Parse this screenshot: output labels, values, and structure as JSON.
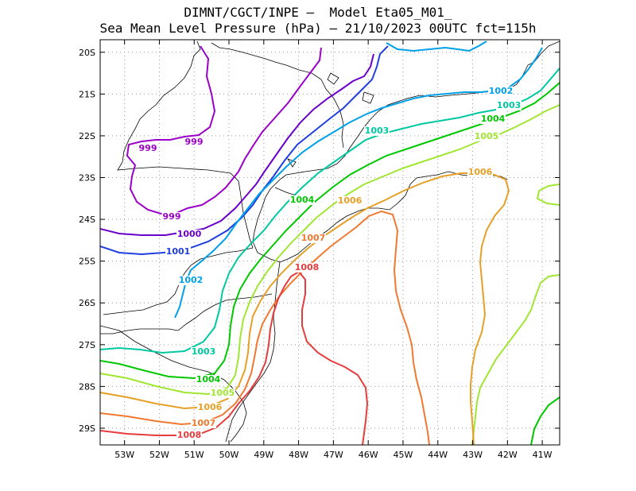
{
  "title": {
    "line1": "DIMNT/CGCT/INPE –  Model Eta05_M01_",
    "line2": "Sea Mean Level Pressure (hPa) – 21/10/2023 00UTC fct=115h"
  },
  "map": {
    "lat_ticks": [
      "20S",
      "21S",
      "22S",
      "23S",
      "24S",
      "25S",
      "26S",
      "27S",
      "28S",
      "29S"
    ],
    "lon_ticks": [
      "53W",
      "52W",
      "51W",
      "50W",
      "49W",
      "48W",
      "47W",
      "46W",
      "45W",
      "44W",
      "43W",
      "42W",
      "41W"
    ],
    "lon_range": [
      -53.7,
      -40.5
    ],
    "lat_range": [
      -19.7,
      -29.4
    ]
  },
  "contour_colors": {
    "999": "#9a00c8",
    "1000": "#6a00cc",
    "1001": "#1f3fe0",
    "1002": "#00a0e8",
    "1003": "#00c8a0",
    "1004": "#00c800",
    "1005": "#a0e632",
    "1006": "#e6a028",
    "1007": "#f07830",
    "1008": "#e63c3c"
  },
  "contour_labels": [
    {
      "text": "999",
      "key": "999"
    },
    {
      "text": "999",
      "key": "999"
    },
    {
      "text": "999",
      "key": "999"
    },
    {
      "text": "1000",
      "key": "1000"
    },
    {
      "text": "1001",
      "key": "1001"
    },
    {
      "text": "1002",
      "key": "1002"
    },
    {
      "text": "1002",
      "key": "1002"
    },
    {
      "text": "1003",
      "key": "1003"
    },
    {
      "text": "1003",
      "key": "1003"
    },
    {
      "text": "1003",
      "key": "1003"
    },
    {
      "text": "1004",
      "key": "1004"
    },
    {
      "text": "1004",
      "key": "1004"
    },
    {
      "text": "1004",
      "key": "1004"
    },
    {
      "text": "1005",
      "key": "1005"
    },
    {
      "text": "1005",
      "key": "1005"
    },
    {
      "text": "1006",
      "key": "1006"
    },
    {
      "text": "1006",
      "key": "1006"
    },
    {
      "text": "1006",
      "key": "1006"
    },
    {
      "text": "1007",
      "key": "1007"
    },
    {
      "text": "1007",
      "key": "1007"
    },
    {
      "text": "1008",
      "key": "1008"
    },
    {
      "text": "1008",
      "key": "1008"
    }
  ]
}
